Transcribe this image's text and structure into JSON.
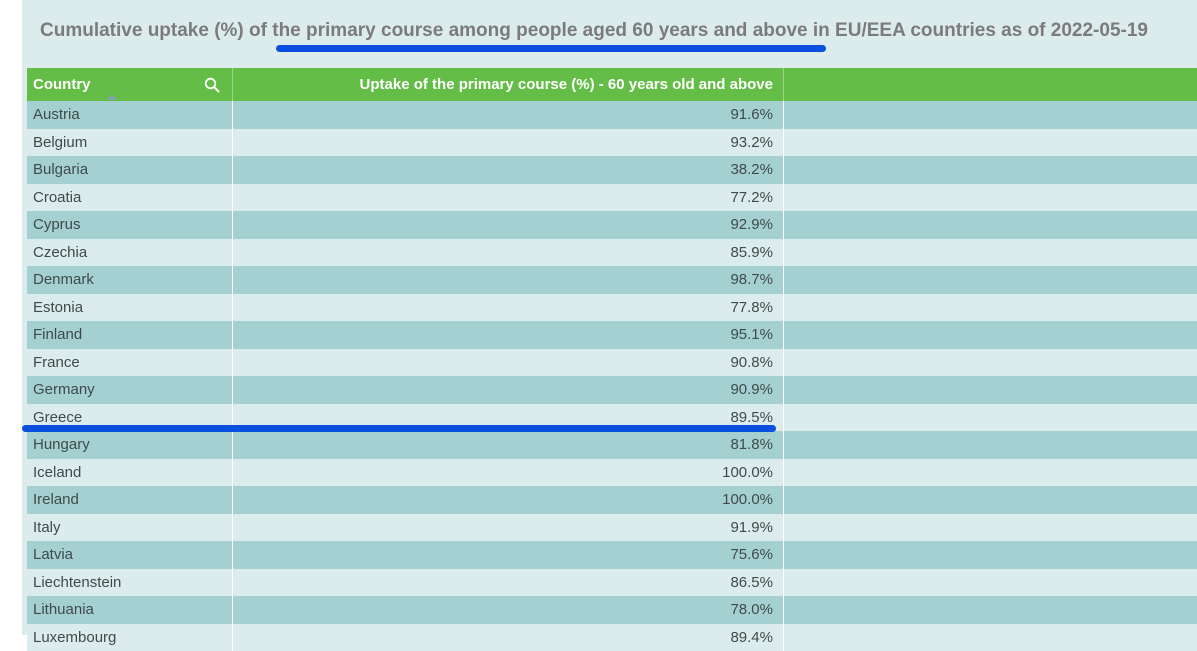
{
  "chart_data": {
    "type": "table",
    "title": "Cumulative uptake (%) of the primary course among people aged 60 years and above in EU/EEA countries as of 2022-05-19",
    "columns": [
      "Country",
      "Uptake of the primary course (%) - 60 years old and above"
    ],
    "rows": [
      {
        "country": "Austria",
        "value": "91.6%"
      },
      {
        "country": "Belgium",
        "value": "93.2%"
      },
      {
        "country": "Bulgaria",
        "value": "38.2%"
      },
      {
        "country": "Croatia",
        "value": "77.2%"
      },
      {
        "country": "Cyprus",
        "value": "92.9%"
      },
      {
        "country": "Czechia",
        "value": "85.9%"
      },
      {
        "country": "Denmark",
        "value": "98.7%"
      },
      {
        "country": "Estonia",
        "value": "77.8%"
      },
      {
        "country": "Finland",
        "value": "95.1%"
      },
      {
        "country": "France",
        "value": "90.8%"
      },
      {
        "country": "Germany",
        "value": "90.9%"
      },
      {
        "country": "Greece",
        "value": "89.5%"
      },
      {
        "country": "Hungary",
        "value": "81.8%"
      },
      {
        "country": "Iceland",
        "value": "100.0%"
      },
      {
        "country": "Ireland",
        "value": "100.0%"
      },
      {
        "country": "Italy",
        "value": "91.9%"
      },
      {
        "country": "Latvia",
        "value": "75.6%"
      },
      {
        "country": "Liechtenstein",
        "value": "86.5%"
      },
      {
        "country": "Lithuania",
        "value": "78.0%"
      },
      {
        "country": "Luxembourg",
        "value": "89.4%"
      }
    ]
  },
  "icons": {
    "search": "search-icon",
    "sort": "sort-ascending-icon"
  },
  "colors": {
    "header": "#63bd46",
    "row_odd": "#a5d0d2",
    "row_even": "#dcecec",
    "highlight_mark": "#0a4fe0"
  }
}
